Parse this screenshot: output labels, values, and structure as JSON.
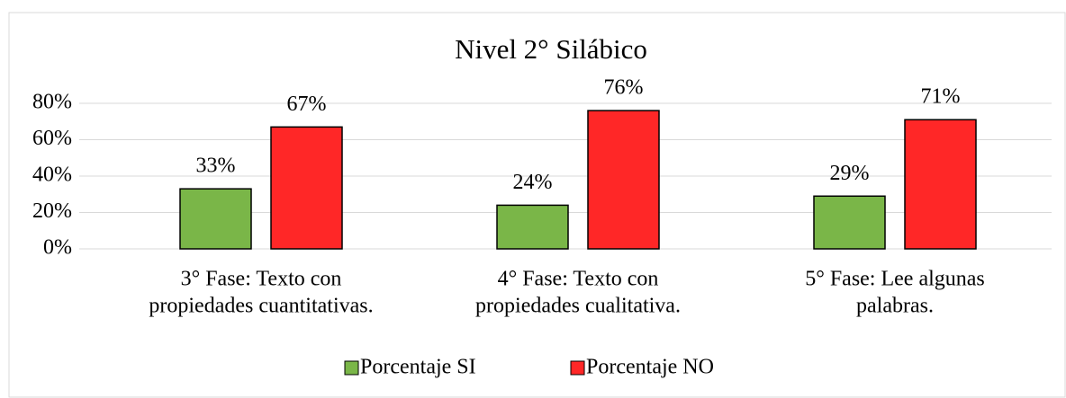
{
  "chart_data": {
    "type": "bar",
    "title": "Nivel 2° Silábico",
    "categories": [
      [
        "3° Fase: Texto con",
        "propiedades cuantitativas."
      ],
      [
        "4° Fase: Texto con",
        "propiedades cualitativa."
      ],
      [
        "5° Fase: Lee algunas",
        "palabras."
      ]
    ],
    "series": [
      {
        "name": "Porcentaje SI",
        "color": "#7ab648",
        "values": [
          33,
          24,
          29
        ],
        "value_labels": [
          "33%",
          "24%",
          "29%"
        ]
      },
      {
        "name": "Porcentaje NO",
        "color": "#ff2727",
        "values": [
          67,
          76,
          71
        ],
        "value_labels": [
          "67%",
          "76%",
          "71%"
        ]
      }
    ],
    "ylim": [
      0,
      80
    ],
    "yticks": [
      {
        "value": 0,
        "label": "0%"
      },
      {
        "value": 20,
        "label": "20%"
      },
      {
        "value": 40,
        "label": "40%"
      },
      {
        "value": 60,
        "label": "60%"
      },
      {
        "value": 80,
        "label": "80%"
      }
    ],
    "grid": true,
    "legend": "bottom"
  }
}
